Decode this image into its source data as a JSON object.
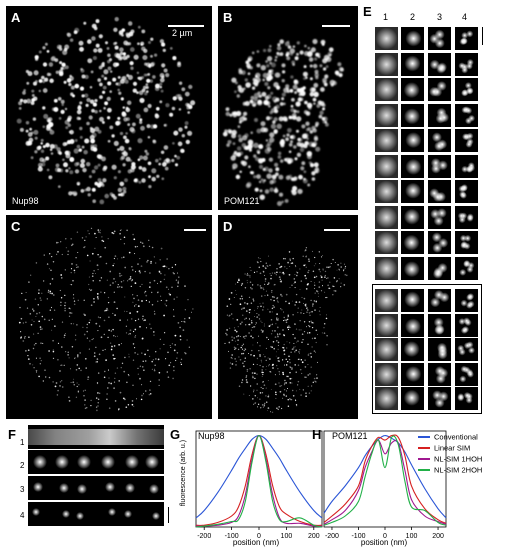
{
  "panels": {
    "A": {
      "label": "A",
      "tag": "Nup98",
      "scalebar": "2 µm"
    },
    "B": {
      "label": "B",
      "tag": "POM121"
    },
    "C": {
      "label": "C"
    },
    "D": {
      "label": "D"
    },
    "E": {
      "label": "E",
      "columns": [
        "1",
        "2",
        "3",
        "4"
      ]
    },
    "F": {
      "label": "F",
      "rows": [
        "1",
        "2",
        "3",
        "4"
      ]
    },
    "G": {
      "label": "G",
      "title": "Nup98"
    },
    "H": {
      "label": "H",
      "title": "POM121"
    }
  },
  "profile_axes": {
    "ylabel": "fluorescence (arb. u.)",
    "xlabel": "position (nm)",
    "ticks": [
      "-200",
      "-100",
      "0",
      "100",
      "200"
    ]
  },
  "legend": {
    "entries": [
      {
        "name": "Conventional",
        "color": "#2a55d6"
      },
      {
        "name": "Linear SIM",
        "color": "#d62020"
      },
      {
        "name": "NL-SIM 1HOH",
        "color": "#a01890"
      },
      {
        "name": "NL-SIM 2HOH",
        "color": "#22b048"
      }
    ]
  },
  "chart_data": [
    {
      "type": "line",
      "title": "Nup98",
      "xlabel": "position (nm)",
      "ylabel": "fluorescence (arb. u.)",
      "xlim": [
        -230,
        230
      ],
      "ylim": [
        0,
        1.05
      ],
      "x": [
        -230,
        -200,
        -150,
        -100,
        -75,
        -50,
        -25,
        0,
        25,
        50,
        75,
        100,
        150,
        200,
        230
      ],
      "series": [
        {
          "name": "Conventional",
          "color": "#2a55d6",
          "values": [
            0.1,
            0.18,
            0.38,
            0.62,
            0.75,
            0.86,
            0.96,
            1.0,
            0.96,
            0.86,
            0.75,
            0.62,
            0.38,
            0.18,
            0.1
          ]
        },
        {
          "name": "Linear SIM",
          "color": "#d62020",
          "values": [
            0.02,
            0.02,
            0.05,
            0.12,
            0.22,
            0.45,
            0.8,
            1.0,
            0.8,
            0.45,
            0.22,
            0.14,
            0.06,
            0.02,
            0.02
          ]
        },
        {
          "name": "NL-SIM 1HOH",
          "color": "#a01890",
          "values": [
            0.01,
            0.01,
            0.02,
            0.05,
            0.12,
            0.35,
            0.75,
            1.0,
            0.75,
            0.35,
            0.1,
            0.04,
            0.04,
            0.01,
            0.01
          ]
        },
        {
          "name": "NL-SIM 2HOH",
          "color": "#22b048",
          "values": [
            0.0,
            0.01,
            0.03,
            0.06,
            0.08,
            0.28,
            0.72,
            1.0,
            0.72,
            0.28,
            0.08,
            0.06,
            0.1,
            0.02,
            0.0
          ]
        }
      ]
    },
    {
      "type": "line",
      "title": "POM121",
      "xlabel": "position (nm)",
      "ylabel": "fluorescence (arb. u.)",
      "xlim": [
        -230,
        230
      ],
      "ylim": [
        0,
        1.05
      ],
      "x": [
        -230,
        -200,
        -150,
        -100,
        -75,
        -50,
        -25,
        0,
        25,
        50,
        75,
        100,
        150,
        200,
        230
      ],
      "series": [
        {
          "name": "Conventional",
          "color": "#2a55d6",
          "values": [
            0.15,
            0.28,
            0.45,
            0.65,
            0.78,
            0.88,
            0.96,
            1.0,
            0.97,
            0.92,
            0.82,
            0.68,
            0.42,
            0.2,
            0.1
          ]
        },
        {
          "name": "Linear SIM",
          "color": "#d62020",
          "values": [
            0.05,
            0.12,
            0.25,
            0.45,
            0.72,
            0.88,
            0.98,
            0.95,
            1.0,
            0.98,
            0.78,
            0.45,
            0.2,
            0.08,
            0.04
          ]
        },
        {
          "name": "NL-SIM 1HOH",
          "color": "#a01890",
          "values": [
            0.03,
            0.08,
            0.18,
            0.4,
            0.65,
            0.82,
            0.95,
            0.8,
            0.92,
            0.92,
            0.62,
            0.3,
            0.12,
            0.06,
            0.03
          ]
        },
        {
          "name": "NL-SIM 2HOH",
          "color": "#22b048",
          "values": [
            0.02,
            0.05,
            0.12,
            0.28,
            0.55,
            0.8,
            0.95,
            0.65,
            0.98,
            0.9,
            0.5,
            0.22,
            0.18,
            0.05,
            0.02
          ]
        }
      ]
    }
  ]
}
